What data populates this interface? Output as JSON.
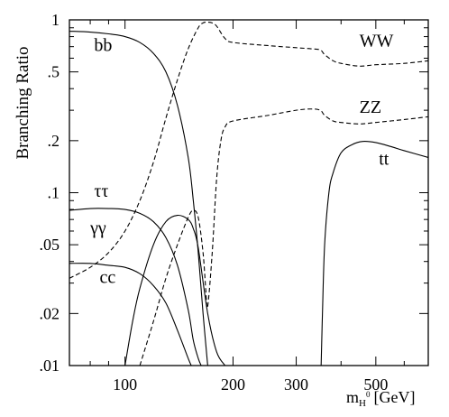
{
  "chart_data": {
    "type": "line",
    "title": "",
    "xlabel": "m",
    "xlabel_sub": "H",
    "xlabel_sup": "0",
    "xlabel_unit": "[GeV]",
    "ylabel": "Branching Ratio",
    "x_scale": "log",
    "y_scale": "log",
    "xlim": [
      70,
      700
    ],
    "ylim": [
      0.01,
      1
    ],
    "grid": false,
    "x_ticks": [
      100,
      200,
      300,
      500
    ],
    "x_tick_labels": [
      "100",
      "200",
      "300",
      "500"
    ],
    "y_ticks": [
      0.01,
      0.02,
      0.05,
      0.1,
      0.2,
      0.5,
      1
    ],
    "y_tick_labels": [
      ".01",
      ".02",
      ".05",
      ".1",
      ".2",
      ".5",
      "1"
    ],
    "series": [
      {
        "name": "bb",
        "style": "solid",
        "x": [
          70,
          80,
          90,
          100,
          110,
          120,
          130,
          140,
          150,
          155,
          160,
          165,
          170
        ],
        "y": [
          0.86,
          0.85,
          0.83,
          0.8,
          0.74,
          0.64,
          0.5,
          0.32,
          0.16,
          0.09,
          0.045,
          0.02,
          0.01
        ]
      },
      {
        "name": "ττ",
        "style": "solid",
        "x": [
          70,
          80,
          90,
          100,
          110,
          120,
          130,
          140,
          150,
          155,
          160,
          163
        ],
        "y": [
          0.079,
          0.081,
          0.081,
          0.08,
          0.076,
          0.068,
          0.055,
          0.038,
          0.021,
          0.014,
          0.011,
          0.01
        ]
      },
      {
        "name": "cc",
        "style": "solid",
        "x": [
          70,
          80,
          90,
          100,
          110,
          120,
          130,
          140,
          150,
          153
        ],
        "y": [
          0.039,
          0.039,
          0.038,
          0.037,
          0.034,
          0.029,
          0.023,
          0.016,
          0.011,
          0.01
        ]
      },
      {
        "name": "γγ",
        "style": "solid",
        "x": [
          100,
          105,
          110,
          120,
          130,
          140,
          150,
          155,
          160,
          170,
          180,
          190
        ],
        "y": [
          0.01,
          0.018,
          0.028,
          0.05,
          0.068,
          0.074,
          0.07,
          0.062,
          0.048,
          0.02,
          0.012,
          0.01
        ]
      },
      {
        "name": "WW",
        "style": "dashed",
        "x": [
          70,
          80,
          90,
          100,
          110,
          120,
          130,
          140,
          150,
          160,
          165,
          170,
          175,
          180,
          190,
          200,
          250,
          300,
          330,
          350,
          360,
          380,
          400,
          450,
          500,
          600,
          700
        ],
        "y": [
          0.032,
          0.037,
          0.045,
          0.06,
          0.09,
          0.15,
          0.27,
          0.45,
          0.68,
          0.9,
          0.96,
          0.97,
          0.96,
          0.92,
          0.78,
          0.74,
          0.71,
          0.69,
          0.68,
          0.67,
          0.63,
          0.58,
          0.56,
          0.54,
          0.55,
          0.56,
          0.58
        ]
      },
      {
        "name": "ZZ",
        "style": "dashed",
        "x": [
          110,
          120,
          130,
          140,
          150,
          155,
          160,
          165,
          168,
          170,
          175,
          180,
          185,
          190,
          200,
          250,
          300,
          330,
          350,
          360,
          380,
          400,
          450,
          500,
          600,
          700
        ],
        "y": [
          0.01,
          0.018,
          0.032,
          0.05,
          0.072,
          0.079,
          0.072,
          0.045,
          0.027,
          0.022,
          0.045,
          0.12,
          0.2,
          0.24,
          0.26,
          0.28,
          0.3,
          0.305,
          0.3,
          0.28,
          0.26,
          0.255,
          0.25,
          0.255,
          0.265,
          0.275
        ]
      },
      {
        "name": "tt",
        "style": "solid",
        "x": [
          352,
          355,
          360,
          370,
          380,
          400,
          430,
          460,
          500,
          550,
          600,
          700
        ],
        "y": [
          0.01,
          0.02,
          0.05,
          0.1,
          0.13,
          0.17,
          0.19,
          0.198,
          0.195,
          0.185,
          0.175,
          0.16
        ]
      }
    ],
    "curve_labels": [
      {
        "text": "bb",
        "x": 82,
        "y": 0.66
      },
      {
        "text": "WW",
        "x": 450,
        "y": 0.7
      },
      {
        "text": "ZZ",
        "x": 450,
        "y": 0.29
      },
      {
        "text": "tt",
        "x": 510,
        "y": 0.145
      },
      {
        "text": "ττ",
        "x": 82,
        "y": 0.095
      },
      {
        "text": "γγ",
        "x": 80,
        "y": 0.058
      },
      {
        "text": "cc",
        "x": 85,
        "y": 0.03
      }
    ]
  }
}
